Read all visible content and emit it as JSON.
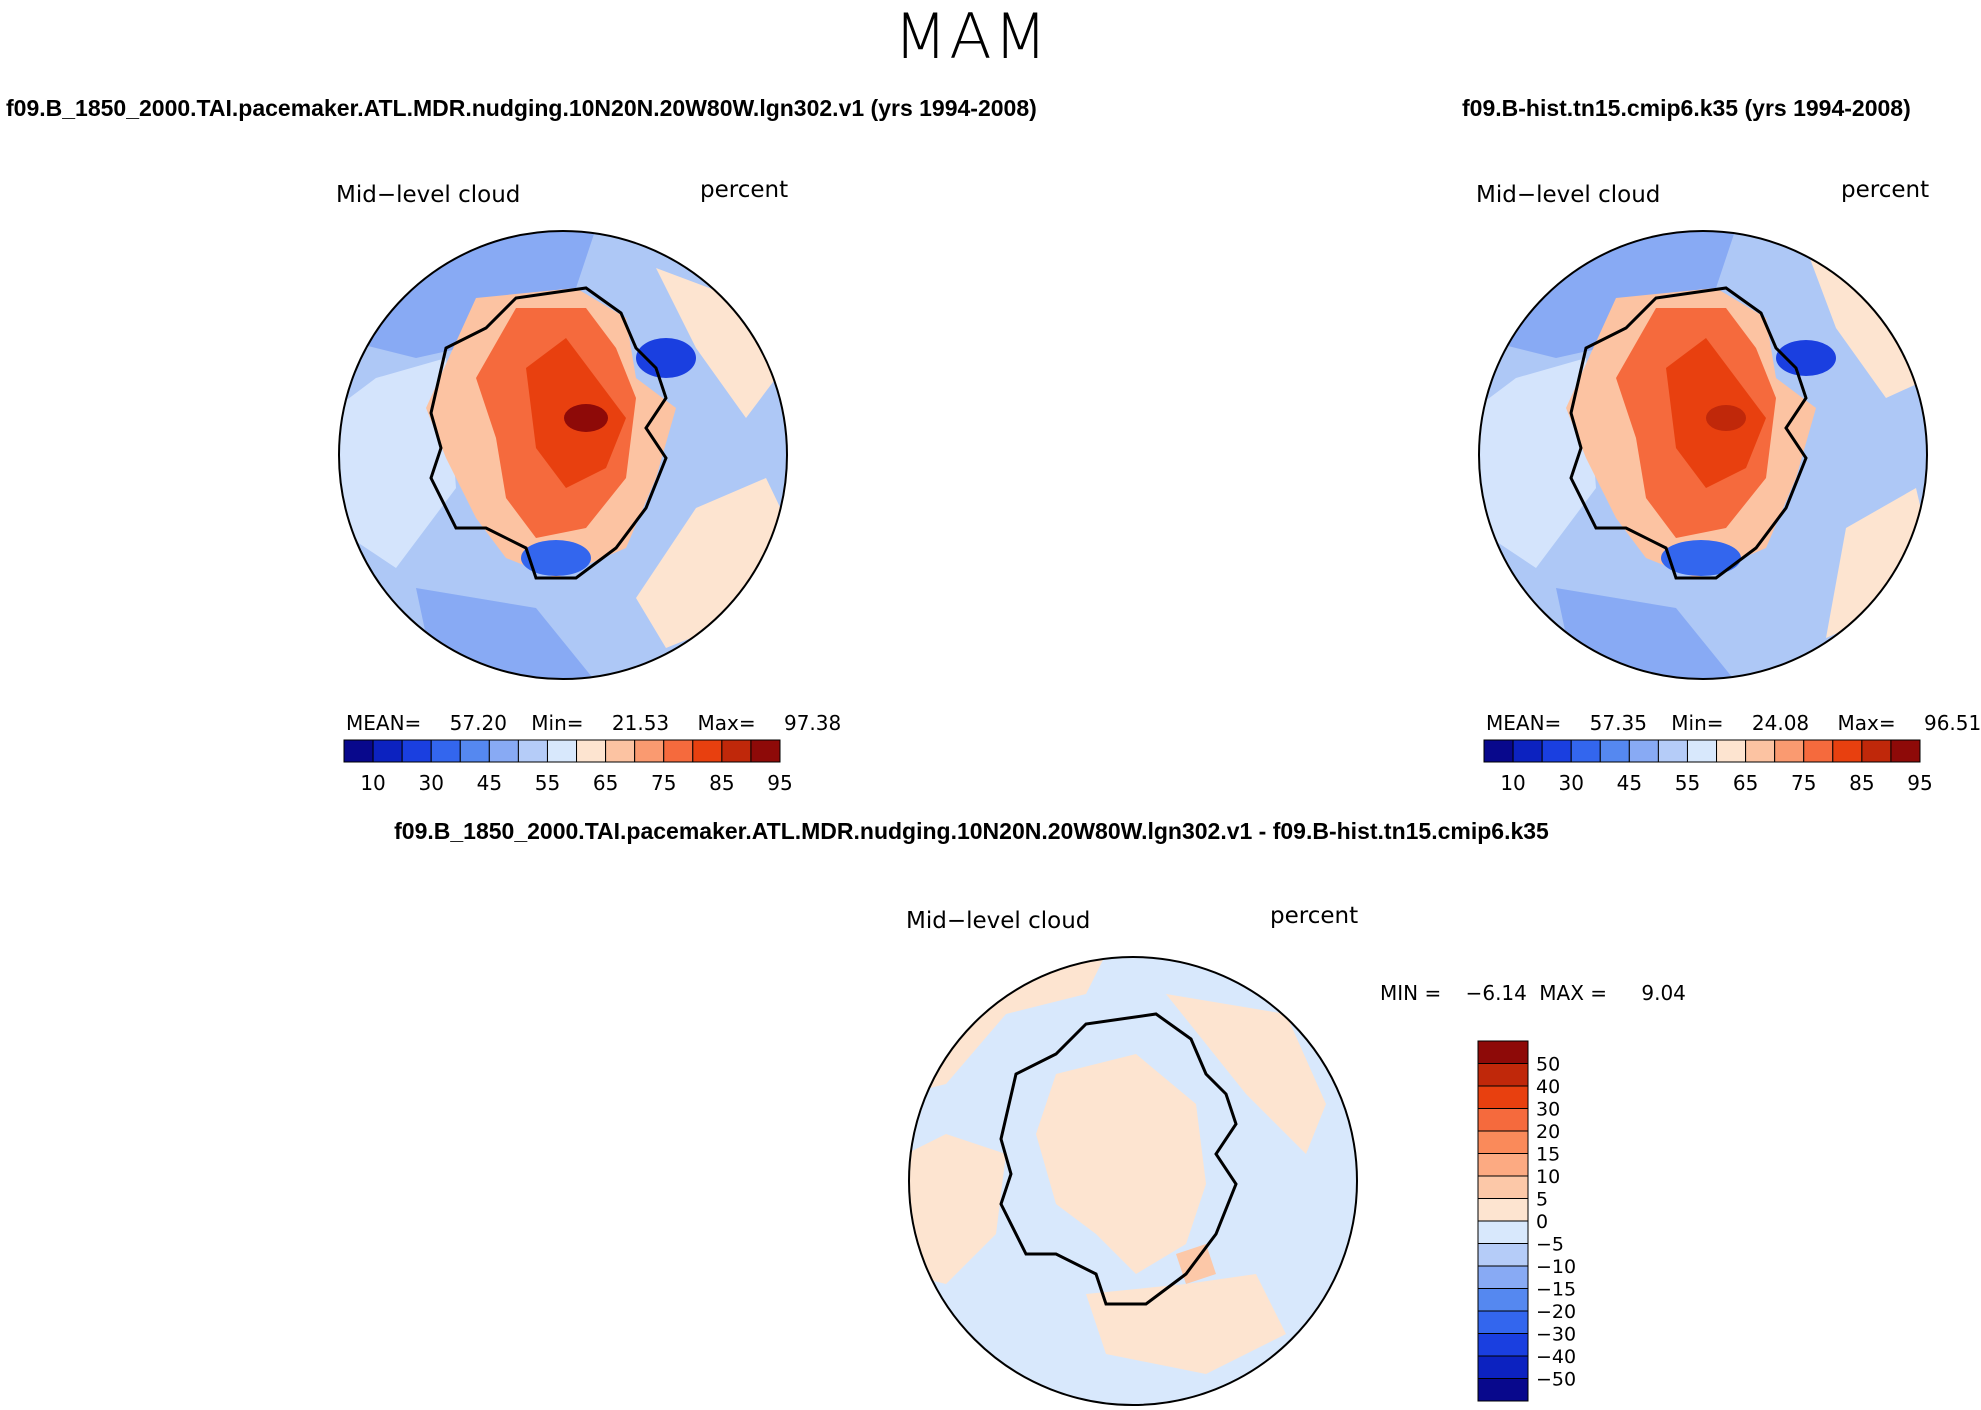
{
  "figure": {
    "title": "MAM"
  },
  "panels": [
    {
      "run_title": "f09.B_1850_2000.TAI.pacemaker.ATL.MDR.nudging.10N20N.20W80W.lgn302.v1 (yrs 1994-2008)",
      "variable": "Mid−level cloud",
      "units": "percent",
      "stats": {
        "mean_label": "MEAN=",
        "mean": "57.20",
        "min_label": "Min=",
        "min": "21.53",
        "max_label": "Max=",
        "max": "97.38"
      }
    },
    {
      "run_title": "f09.B-hist.tn15.cmip6.k35 (yrs 1994-2008)",
      "variable": "Mid−level cloud",
      "units": "percent",
      "stats": {
        "mean_label": "MEAN=",
        "mean": "57.35",
        "min_label": "Min=",
        "min": "24.08",
        "max_label": "Max=",
        "max": "96.51"
      }
    },
    {
      "run_title": "f09.B_1850_2000.TAI.pacemaker.ATL.MDR.nudging.10N20N.20W80W.lgn302.v1 - f09.B-hist.tn15.cmip6.k35",
      "variable": "Mid−level cloud",
      "units": "percent",
      "stats": {
        "min_label": "MIN =",
        "min": "−6.14",
        "max_label": "MAX =",
        "max": "9.04"
      }
    }
  ],
  "chart_data": [
    {
      "type": "heatmap",
      "projection": "south-polar-stereographic",
      "title": "Mid−level cloud",
      "units": "percent",
      "stats": {
        "mean": 57.2,
        "min": 21.53,
        "max": 97.38
      },
      "colorbar": {
        "orientation": "horizontal",
        "levels": [
          10,
          30,
          45,
          55,
          65,
          75,
          85,
          95
        ],
        "tick_labels": [
          "10",
          "30",
          "45",
          "55",
          "65",
          "75",
          "85",
          "95"
        ],
        "colors": [
          "#08088c",
          "#0c22c0",
          "#1a3fe0",
          "#3366ee",
          "#5588f0",
          "#88aaf4",
          "#b5ccf8",
          "#d8e8fc",
          "#fde4d0",
          "#fcc3a2",
          "#fa9a70",
          "#f56a3d",
          "#e8400f",
          "#c0280a",
          "#8e0a08"
        ]
      }
    },
    {
      "type": "heatmap",
      "projection": "south-polar-stereographic",
      "title": "Mid−level cloud",
      "units": "percent",
      "stats": {
        "mean": 57.35,
        "min": 24.08,
        "max": 96.51
      },
      "colorbar": {
        "orientation": "horizontal",
        "levels": [
          10,
          30,
          45,
          55,
          65,
          75,
          85,
          95
        ],
        "tick_labels": [
          "10",
          "30",
          "45",
          "55",
          "65",
          "75",
          "85",
          "95"
        ],
        "colors": [
          "#08088c",
          "#0c22c0",
          "#1a3fe0",
          "#3366ee",
          "#5588f0",
          "#88aaf4",
          "#b5ccf8",
          "#d8e8fc",
          "#fde4d0",
          "#fcc3a2",
          "#fa9a70",
          "#f56a3d",
          "#e8400f",
          "#c0280a",
          "#8e0a08"
        ]
      }
    },
    {
      "type": "heatmap",
      "projection": "south-polar-stereographic",
      "title": "Mid−level cloud",
      "units": "percent",
      "stats": {
        "min": -6.14,
        "max": 9.04
      },
      "colorbar": {
        "orientation": "vertical",
        "levels": [
          50,
          40,
          30,
          20,
          15,
          10,
          5,
          0,
          -5,
          -10,
          -15,
          -20,
          -30,
          -40,
          -50
        ],
        "tick_labels": [
          "50",
          "40",
          "30",
          "20",
          "15",
          "10",
          "5",
          "0",
          "−5",
          "−10",
          "−15",
          "−20",
          "−30",
          "−40",
          "−50"
        ],
        "colors": [
          "#8e0a08",
          "#c0280a",
          "#e8400f",
          "#f56a3d",
          "#fa8a5a",
          "#fcaa82",
          "#fcc8a8",
          "#fde4d0",
          "#d8e8fc",
          "#b5ccf8",
          "#88aaf4",
          "#5588f0",
          "#3366ee",
          "#1a3fe0",
          "#0c22c0",
          "#08088c"
        ]
      }
    }
  ]
}
